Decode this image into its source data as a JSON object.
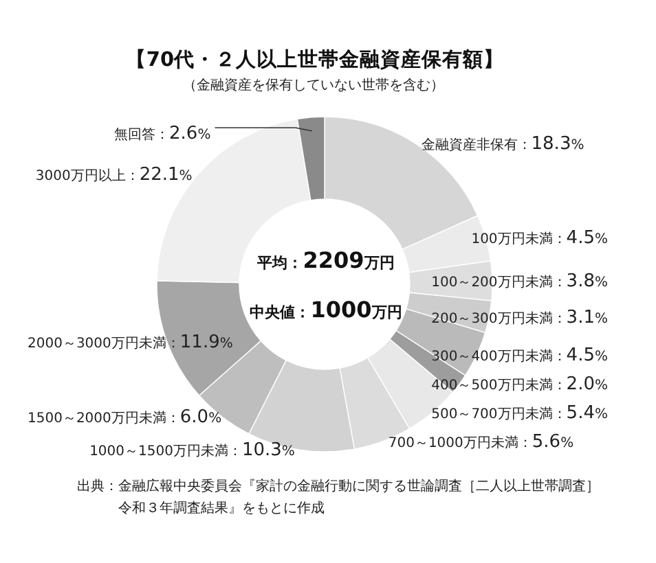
{
  "chart_data": {
    "type": "donut",
    "title": "【70代・２人以上世帯金融資産保有額】",
    "subtitle": "（金融資産を保有していない世帯を含む）",
    "categories": [
      "金融資産非保有",
      "100万円未満",
      "100～200万円未満",
      "200～300万円未満",
      "300～400万円未満",
      "400～500万円未満",
      "500～700万円未満",
      "700～1000万円未満",
      "1000～1500万円未満",
      "1500～2000万円未満",
      "2000～3000万円未満",
      "3000万円以上",
      "無回答"
    ],
    "values": [
      18.3,
      4.5,
      3.8,
      3.1,
      4.5,
      2.0,
      5.4,
      5.6,
      10.3,
      6.0,
      11.9,
      22.1,
      2.6
    ],
    "value_labels": [
      "：18.3%",
      "：4.5%",
      "：3.8%",
      "：3.1%",
      "：4.5%",
      "：2.0%",
      "：5.4%",
      "：5.6%",
      "：10.3%",
      "：6.0%",
      "：11.9%",
      "：22.1%",
      "：2.6%"
    ],
    "colors": [
      "#d6d6d6",
      "#ebebeb",
      "#dedede",
      "#cdcdcd",
      "#bababa",
      "#9d9d9d",
      "#e8e8e8",
      "#dcdcdc",
      "#d2d2d2",
      "#bebebe",
      "#a6a6a6",
      "#efefef",
      "#8a8a8a"
    ],
    "annotations": [
      "平均：2209万円",
      "中央値：1000万円",
      "出典：金融広報中央委員会『家計の金融行動に関する世論調査［二人以上世帯調査］令和３年調査結果』をもとに作成"
    ]
  }
}
